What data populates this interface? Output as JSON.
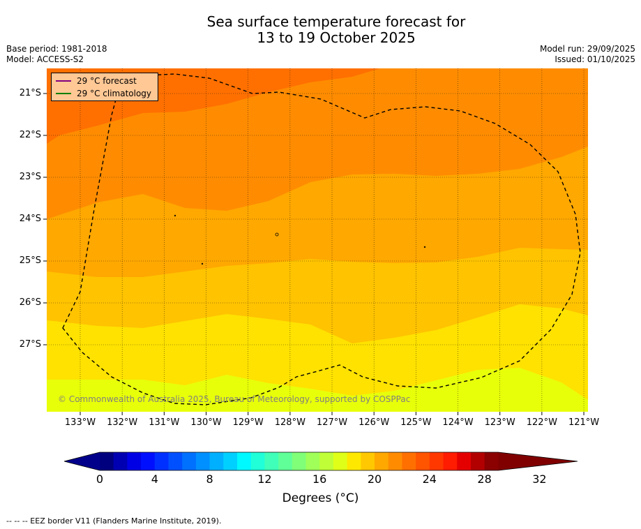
{
  "title": {
    "line1": "Sea surface temperature forecast for",
    "line2": "13 to 19 October 2025"
  },
  "meta": {
    "base_period": "Base period: 1981-2018",
    "model": "Model: ACCESS-S2",
    "model_run": "Model run: 29/09/2025",
    "issued": "Issued: 01/10/2025"
  },
  "legend": {
    "forecast": {
      "label": "29 °C  forecast",
      "color": "#800080"
    },
    "climatology": {
      "label": "29 °C  climatology",
      "color": "#008000"
    }
  },
  "map": {
    "lat_labels": [
      "21°S",
      "22°S",
      "23°S",
      "24°S",
      "25°S",
      "26°S",
      "27°S"
    ],
    "lon_labels": [
      "133°W",
      "132°W",
      "131°W",
      "130°W",
      "129°W",
      "128°W",
      "127°W",
      "126°W",
      "125°W",
      "124°W",
      "123°W",
      "122°W",
      "121°W"
    ],
    "copyright": "© Commonwealth of Australia 2025, Bureau of Meteorology, supported by COSPPac"
  },
  "colorbar": {
    "ticks": [
      "0",
      "4",
      "8",
      "12",
      "16",
      "20",
      "24",
      "28",
      "32"
    ],
    "label": "Degrees (°C)",
    "under_color": "#00008b",
    "over_color": "#800000",
    "colors": [
      "#00007f",
      "#0000b2",
      "#0000e5",
      "#0010ff",
      "#0030ff",
      "#0050ff",
      "#0070ff",
      "#0090ff",
      "#00b0ff",
      "#00d0ff",
      "#00f8ff",
      "#20ffd8",
      "#40ffb8",
      "#60ff98",
      "#80ff78",
      "#a0ff58",
      "#c0ff38",
      "#e0ff18",
      "#ffe800",
      "#ffc800",
      "#ffa800",
      "#ff8c00",
      "#ff7000",
      "#ff5400",
      "#ff3800",
      "#ff1c00",
      "#e50000",
      "#b20000",
      "#8b0000"
    ]
  },
  "footer": "--  --  -- EEZ border V11 (Flanders Marine Institute, 2019)."
}
